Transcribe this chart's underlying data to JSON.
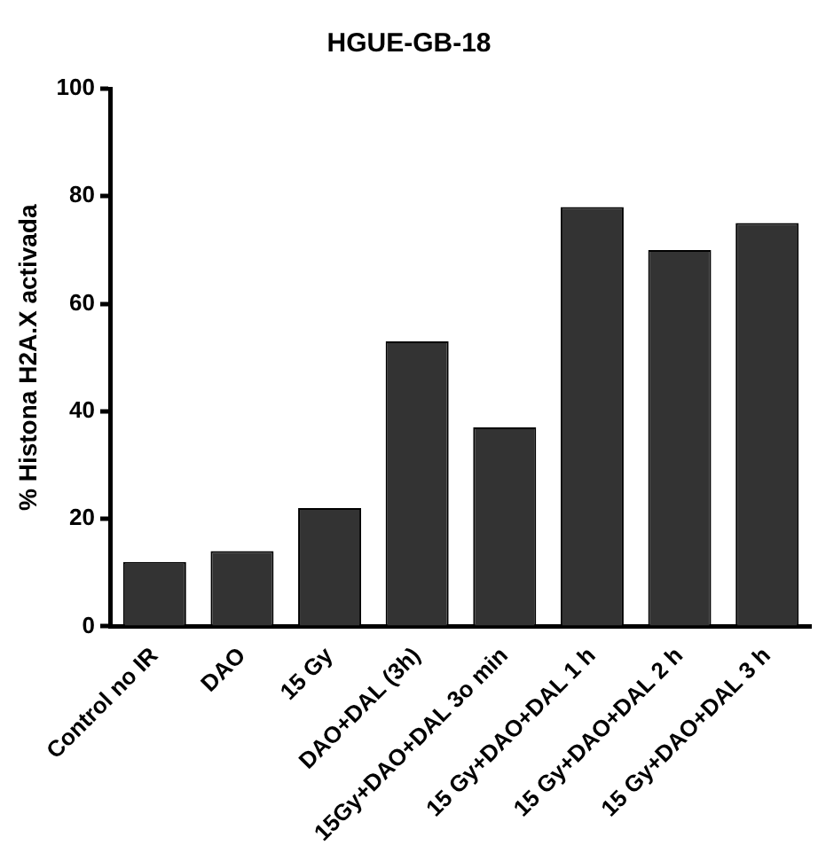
{
  "chart_data": {
    "type": "bar",
    "title": "HGUE-GB-18",
    "ylabel": "% Histona H2A.X activada",
    "categories": [
      "Control no IR",
      "DAO",
      "15 Gy",
      "DAO+DAL (3h)",
      "15Gy+DAO+DAL 3o min",
      "15 Gy+DAO+DAL 1 h",
      "15 Gy+DAO+DAL 2 h",
      "15 Gy+DAO+DAL 3 h"
    ],
    "values": [
      12,
      14,
      22,
      53,
      37,
      78,
      70,
      75
    ],
    "color": "#333333",
    "ylim": [
      0,
      100
    ],
    "yticks": [
      0,
      20,
      40,
      60,
      80,
      100
    ],
    "grid": false,
    "legend": false
  }
}
